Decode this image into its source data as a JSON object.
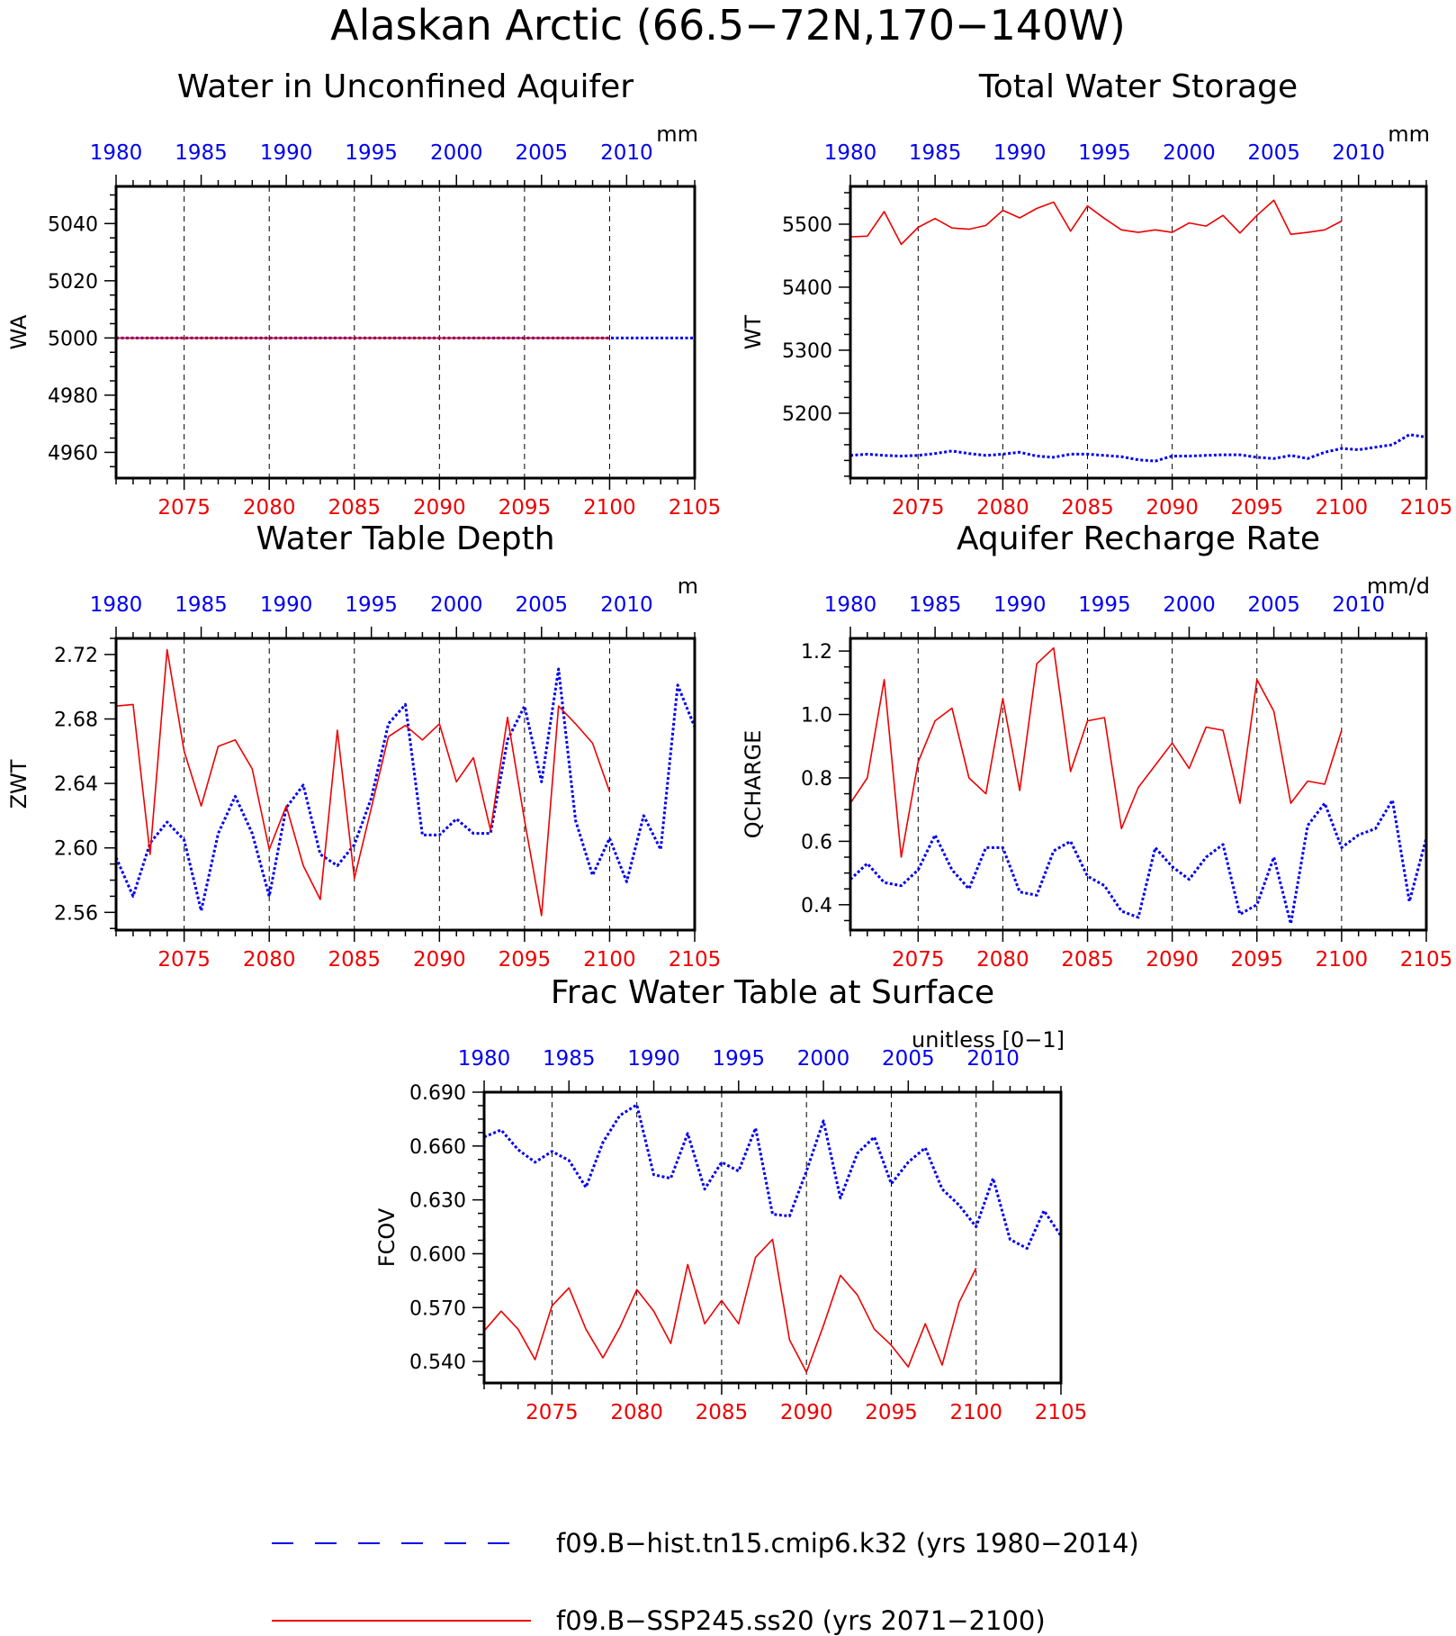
{
  "page": {
    "title": "Alaskan Arctic (66.5−72N,170−140W)"
  },
  "colors": {
    "hist": "#0000ee",
    "ssp": "#ee0000",
    "axis": "#000000"
  },
  "legend": {
    "hist_label": "f09.B−hist.tn15.cmip6.k32 (yrs 1980−2014)",
    "ssp_label": "f09.B−SSP245.ss20 (yrs 2071−2100)"
  },
  "chart_data": [
    {
      "type": "line",
      "title": "Water in Unconfined Aquifer",
      "units": "mm",
      "ylabel": "WA",
      "ylim": [
        4951,
        5053
      ],
      "yticks": [
        4960,
        4980,
        5000,
        5020,
        5040
      ],
      "ytick_labels": [
        "4960",
        "4980",
        "5000",
        "5020",
        "5040"
      ],
      "bottom_axis": {
        "range": [
          2071,
          2105
        ],
        "ticks": [
          2075,
          2080,
          2085,
          2090,
          2095,
          2100,
          2105
        ]
      },
      "top_axis": {
        "range": [
          1980,
          2014
        ],
        "ticks": [
          1980,
          1985,
          1990,
          1995,
          2000,
          2005,
          2010
        ]
      },
      "series": [
        {
          "name": "f09.B−hist.tn15.cmip6.k32 (yrs 1980−2014)",
          "key": "hist",
          "style": "dotted",
          "x_axis": "top",
          "x": [
            1980,
            1981,
            1982,
            1983,
            1984,
            1985,
            1986,
            1987,
            1988,
            1989,
            1990,
            1991,
            1992,
            1993,
            1994,
            1995,
            1996,
            1997,
            1998,
            1999,
            2000,
            2001,
            2002,
            2003,
            2004,
            2005,
            2006,
            2007,
            2008,
            2009,
            2010,
            2011,
            2012,
            2013,
            2014
          ],
          "y": [
            5000,
            5000,
            5000,
            5000,
            5000,
            5000,
            5000,
            5000,
            5000,
            5000,
            5000,
            5000,
            5000,
            5000,
            5000,
            5000,
            5000,
            5000,
            5000,
            5000,
            5000,
            5000,
            5000,
            5000,
            5000,
            5000,
            5000,
            5000,
            5000,
            5000,
            5000,
            5000,
            5000,
            5000,
            5000
          ]
        },
        {
          "name": "f09.B−SSP245.ss20 (yrs 2071−2100)",
          "key": "ssp",
          "style": "solid",
          "x_axis": "bottom",
          "x": [
            2071,
            2072,
            2073,
            2074,
            2075,
            2076,
            2077,
            2078,
            2079,
            2080,
            2081,
            2082,
            2083,
            2084,
            2085,
            2086,
            2087,
            2088,
            2089,
            2090,
            2091,
            2092,
            2093,
            2094,
            2095,
            2096,
            2097,
            2098,
            2099,
            2100
          ],
          "y": [
            5000,
            5000,
            5000,
            5000,
            5000,
            5000,
            5000,
            5000,
            5000,
            5000,
            5000,
            5000,
            5000,
            5000,
            5000,
            5000,
            5000,
            5000,
            5000,
            5000,
            5000,
            5000,
            5000,
            5000,
            5000,
            5000,
            5000,
            5000,
            5000,
            5000
          ]
        }
      ]
    },
    {
      "type": "line",
      "title": "Total Water Storage",
      "units": "mm",
      "ylabel": "WT",
      "ylim": [
        5097,
        5560
      ],
      "yticks": [
        5200,
        5300,
        5400,
        5500
      ],
      "ytick_labels": [
        "5200",
        "5300",
        "5400",
        "5500"
      ],
      "bottom_axis": {
        "range": [
          2071,
          2105
        ],
        "ticks": [
          2075,
          2080,
          2085,
          2090,
          2095,
          2100,
          2105
        ]
      },
      "top_axis": {
        "range": [
          1980,
          2014
        ],
        "ticks": [
          1980,
          1985,
          1990,
          1995,
          2000,
          2005,
          2010
        ]
      },
      "series": [
        {
          "name": "f09.B−hist.tn15.cmip6.k32 (yrs 1980−2014)",
          "key": "hist",
          "style": "dotted",
          "x_axis": "top",
          "x": [
            1980,
            1981,
            1982,
            1983,
            1984,
            1985,
            1986,
            1987,
            1988,
            1989,
            1990,
            1991,
            1992,
            1993,
            1994,
            1995,
            1996,
            1997,
            1998,
            1999,
            2000,
            2001,
            2002,
            2003,
            2004,
            2005,
            2006,
            2007,
            2008,
            2009,
            2010,
            2011,
            2012,
            2013,
            2014
          ],
          "y": [
            5133,
            5135,
            5133,
            5132,
            5133,
            5136,
            5140,
            5136,
            5133,
            5135,
            5138,
            5132,
            5130,
            5135,
            5135,
            5133,
            5131,
            5126,
            5124,
            5132,
            5132,
            5133,
            5134,
            5134,
            5130,
            5128,
            5133,
            5128,
            5138,
            5144,
            5142,
            5146,
            5150,
            5166,
            5162
          ]
        },
        {
          "name": "f09.B−SSP245.ss20 (yrs 2071−2100)",
          "key": "ssp",
          "style": "solid",
          "x_axis": "bottom",
          "x": [
            2071,
            2072,
            2073,
            2074,
            2075,
            2076,
            2077,
            2078,
            2079,
            2080,
            2081,
            2082,
            2083,
            2084,
            2085,
            2086,
            2087,
            2088,
            2089,
            2090,
            2091,
            2092,
            2093,
            2094,
            2095,
            2096,
            2097,
            2098,
            2099,
            2100
          ],
          "y": [
            5480,
            5481,
            5520,
            5468,
            5495,
            5509,
            5494,
            5492,
            5498,
            5522,
            5510,
            5525,
            5535,
            5489,
            5529,
            5509,
            5491,
            5487,
            5491,
            5487,
            5502,
            5497,
            5514,
            5486,
            5514,
            5538,
            5484,
            5487,
            5491,
            5505
          ]
        }
      ]
    },
    {
      "type": "line",
      "title": "Water Table Depth",
      "units": "m",
      "ylabel": "ZWT",
      "ylim": [
        2.549,
        2.73
      ],
      "yticks": [
        2.56,
        2.6,
        2.64,
        2.68,
        2.72
      ],
      "ytick_labels": [
        "2.56",
        "2.60",
        "2.64",
        "2.68",
        "2.72"
      ],
      "bottom_axis": {
        "range": [
          2071,
          2105
        ],
        "ticks": [
          2075,
          2080,
          2085,
          2090,
          2095,
          2100,
          2105
        ]
      },
      "top_axis": {
        "range": [
          1980,
          2014
        ],
        "ticks": [
          1980,
          1985,
          1990,
          1995,
          2000,
          2005,
          2010
        ]
      },
      "series": [
        {
          "name": "f09.B−hist.tn15.cmip6.k32 (yrs 1980−2014)",
          "key": "hist",
          "style": "dotted",
          "x_axis": "top",
          "x": [
            1980,
            1981,
            1982,
            1983,
            1984,
            1985,
            1986,
            1987,
            1988,
            1989,
            1990,
            1991,
            1992,
            1993,
            1994,
            1995,
            1996,
            1997,
            1998,
            1999,
            2000,
            2001,
            2002,
            2003,
            2004,
            2005,
            2006,
            2007,
            2008,
            2009,
            2010,
            2011,
            2012,
            2013,
            2014
          ],
          "y": [
            2.594,
            2.57,
            2.603,
            2.616,
            2.605,
            2.561,
            2.609,
            2.632,
            2.609,
            2.57,
            2.625,
            2.639,
            2.596,
            2.589,
            2.602,
            2.631,
            2.677,
            2.689,
            2.608,
            2.608,
            2.618,
            2.609,
            2.609,
            2.667,
            2.688,
            2.641,
            2.711,
            2.617,
            2.583,
            2.606,
            2.579,
            2.62,
            2.599,
            2.701,
            2.675
          ]
        },
        {
          "name": "f09.B−SSP245.ss20 (yrs 2071−2100)",
          "key": "ssp",
          "style": "solid",
          "x_axis": "bottom",
          "x": [
            2071,
            2072,
            2073,
            2074,
            2075,
            2076,
            2077,
            2078,
            2079,
            2080,
            2081,
            2082,
            2083,
            2084,
            2085,
            2086,
            2087,
            2088,
            2089,
            2090,
            2091,
            2092,
            2093,
            2094,
            2095,
            2096,
            2097,
            2098,
            2099,
            2100
          ],
          "y": [
            2.688,
            2.689,
            2.596,
            2.723,
            2.66,
            2.626,
            2.663,
            2.667,
            2.649,
            2.599,
            2.626,
            2.589,
            2.568,
            2.673,
            2.581,
            2.625,
            2.669,
            2.676,
            2.667,
            2.677,
            2.641,
            2.656,
            2.611,
            2.681,
            2.617,
            2.558,
            2.688,
            2.677,
            2.665,
            2.635
          ]
        }
      ]
    },
    {
      "type": "line",
      "title": "Aquifer Recharge Rate",
      "units": "mm/d",
      "ylabel": "QCHARGE",
      "ylim": [
        0.32,
        1.24
      ],
      "yticks": [
        0.4,
        0.6,
        0.8,
        1.0,
        1.2
      ],
      "ytick_labels": [
        "0.4",
        "0.6",
        "0.8",
        "1.0",
        "1.2"
      ],
      "bottom_axis": {
        "range": [
          2071,
          2105
        ],
        "ticks": [
          2075,
          2080,
          2085,
          2090,
          2095,
          2100,
          2105
        ]
      },
      "top_axis": {
        "range": [
          1980,
          2014
        ],
        "ticks": [
          1980,
          1985,
          1990,
          1995,
          2000,
          2005,
          2010
        ]
      },
      "series": [
        {
          "name": "f09.B−hist.tn15.cmip6.k32 (yrs 1980−2014)",
          "key": "hist",
          "style": "dotted",
          "x_axis": "top",
          "x": [
            1980,
            1981,
            1982,
            1983,
            1984,
            1985,
            1986,
            1987,
            1988,
            1989,
            1990,
            1991,
            1992,
            1993,
            1994,
            1995,
            1996,
            1997,
            1998,
            1999,
            2000,
            2001,
            2002,
            2003,
            2004,
            2005,
            2006,
            2007,
            2008,
            2009,
            2010,
            2011,
            2012,
            2013,
            2014
          ],
          "y": [
            0.48,
            0.53,
            0.47,
            0.46,
            0.51,
            0.62,
            0.51,
            0.45,
            0.58,
            0.58,
            0.44,
            0.43,
            0.57,
            0.6,
            0.49,
            0.46,
            0.38,
            0.36,
            0.58,
            0.52,
            0.48,
            0.55,
            0.59,
            0.37,
            0.4,
            0.55,
            0.34,
            0.65,
            0.72,
            0.58,
            0.62,
            0.64,
            0.73,
            0.41,
            0.61
          ]
        },
        {
          "name": "f09.B−SSP245.ss20 (yrs 2071−2100)",
          "key": "ssp",
          "style": "solid",
          "x_axis": "bottom",
          "x": [
            2071,
            2072,
            2073,
            2074,
            2075,
            2076,
            2077,
            2078,
            2079,
            2080,
            2081,
            2082,
            2083,
            2084,
            2085,
            2086,
            2087,
            2088,
            2089,
            2090,
            2091,
            2092,
            2093,
            2094,
            2095,
            2096,
            2097,
            2098,
            2099,
            2100
          ],
          "y": [
            0.72,
            0.8,
            1.11,
            0.55,
            0.85,
            0.98,
            1.02,
            0.8,
            0.75,
            1.05,
            0.76,
            1.16,
            1.21,
            0.82,
            0.98,
            0.99,
            0.64,
            0.77,
            0.84,
            0.91,
            0.83,
            0.96,
            0.95,
            0.72,
            1.11,
            1.01,
            0.72,
            0.79,
            0.78,
            0.95
          ]
        }
      ]
    },
    {
      "type": "line",
      "title": "Frac Water Table at Surface",
      "units": "unitless [0−1]",
      "ylabel": "FCOV",
      "ylim": [
        0.528,
        0.69
      ],
      "yticks": [
        0.54,
        0.57,
        0.6,
        0.63,
        0.66,
        0.69
      ],
      "ytick_labels": [
        "0.540",
        "0.570",
        "0.600",
        "0.630",
        "0.660",
        "0.690"
      ],
      "bottom_axis": {
        "range": [
          2071,
          2105
        ],
        "ticks": [
          2075,
          2080,
          2085,
          2090,
          2095,
          2100,
          2105
        ]
      },
      "top_axis": {
        "range": [
          1980,
          2014
        ],
        "ticks": [
          1980,
          1985,
          1990,
          1995,
          2000,
          2005,
          2010
        ]
      },
      "series": [
        {
          "name": "f09.B−hist.tn15.cmip6.k32 (yrs 1980−2014)",
          "key": "hist",
          "style": "dotted",
          "x_axis": "top",
          "x": [
            1980,
            1981,
            1982,
            1983,
            1984,
            1985,
            1986,
            1987,
            1988,
            1989,
            1990,
            1991,
            1992,
            1993,
            1994,
            1995,
            1996,
            1997,
            1998,
            1999,
            2000,
            2001,
            2002,
            2003,
            2004,
            2005,
            2006,
            2007,
            2008,
            2009,
            2010,
            2011,
            2012,
            2013,
            2014
          ],
          "y": [
            0.665,
            0.669,
            0.658,
            0.651,
            0.657,
            0.652,
            0.637,
            0.662,
            0.677,
            0.683,
            0.644,
            0.642,
            0.667,
            0.636,
            0.651,
            0.646,
            0.67,
            0.622,
            0.621,
            0.646,
            0.674,
            0.631,
            0.656,
            0.665,
            0.639,
            0.651,
            0.659,
            0.636,
            0.627,
            0.615,
            0.642,
            0.608,
            0.603,
            0.624,
            0.61
          ]
        },
        {
          "name": "f09.B−SSP245.ss20 (yrs 2071−2100)",
          "key": "ssp",
          "style": "solid",
          "x_axis": "bottom",
          "x": [
            2071,
            2072,
            2073,
            2074,
            2075,
            2076,
            2077,
            2078,
            2079,
            2080,
            2081,
            2082,
            2083,
            2084,
            2085,
            2086,
            2087,
            2088,
            2089,
            2090,
            2091,
            2092,
            2093,
            2094,
            2095,
            2096,
            2097,
            2098,
            2099,
            2100
          ],
          "y": [
            0.557,
            0.568,
            0.558,
            0.541,
            0.571,
            0.581,
            0.558,
            0.542,
            0.559,
            0.58,
            0.568,
            0.55,
            0.594,
            0.561,
            0.574,
            0.561,
            0.598,
            0.608,
            0.552,
            0.534,
            0.56,
            0.588,
            0.577,
            0.558,
            0.549,
            0.537,
            0.561,
            0.538,
            0.573,
            0.592
          ]
        }
      ]
    }
  ]
}
